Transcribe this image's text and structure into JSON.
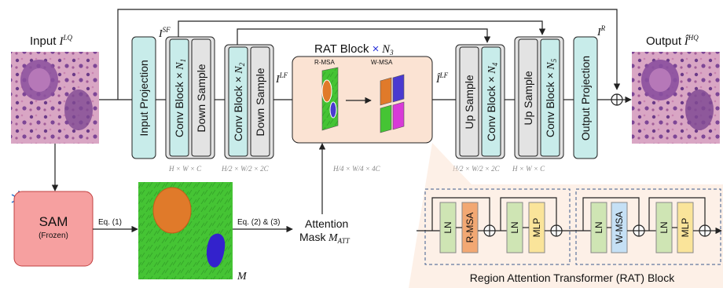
{
  "input_label": "Input",
  "input_symbol": "I^LQ",
  "output_label": "Output",
  "output_symbol": "Î^HQ",
  "skip_sf": "I^SF",
  "lf_symbol": "I^LF",
  "lf_hat_symbol": "Î^LF",
  "residual_symbol": "I^R",
  "blocks": {
    "input_projection": "Input Projection",
    "conv_block": "Conv Block ×",
    "n1": "N1",
    "n2": "N2",
    "n4": "N4",
    "n5": "N5",
    "down_sample": "Down Sample",
    "up_sample": "Up Sample",
    "output_projection": "Output Projection"
  },
  "rat_block": {
    "title": "RAT Block",
    "times": "×",
    "n3": "N3",
    "r_msa": "R-MSA",
    "w_msa": "W-MSA"
  },
  "dims": {
    "d1": "H × W × C",
    "d2": "H/2 × W/2 × 2C",
    "d3": "H/4 × W/4 × 4C",
    "d4": "H/2 × W/2 × 2C",
    "d5": "H × W × C"
  },
  "sam": {
    "title": "SAM",
    "subtitle": "(Frozen)"
  },
  "eq1": "Eq. (1)",
  "eq23": "Eq. (2) & (3)",
  "mask_symbol": "M",
  "attention_mask": {
    "line1": "Attention",
    "line2": "Mask",
    "symbol": "M_ATT"
  },
  "rat_detail": {
    "title": "Region Attention Transformer (RAT) Block",
    "ln": "LN",
    "r_msa": "R-MSA",
    "mlp": "MLP",
    "w_msa": "W-MSA"
  },
  "colors": {
    "teal_block": "#c8ecea",
    "gray_block": "#e3e3e3",
    "rat_bg": "#fbe3d3",
    "sam_fill": "#f6a0a0",
    "ln_green": "#cfe5b4",
    "rmsa_orange": "#f2a873",
    "mlp_yellow": "#fae49a",
    "wmsa_blue": "#c5e0f5",
    "conv_text_blue": "#2a32d8"
  }
}
